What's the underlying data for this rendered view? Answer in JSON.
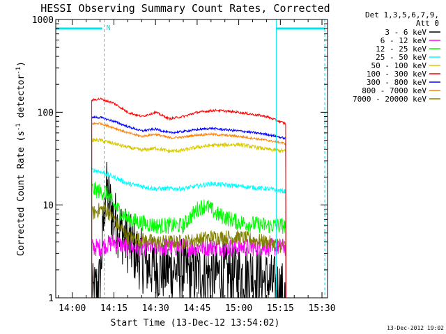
{
  "chart_data": {
    "type": "line",
    "title": "HESSI Observing Summary Count Rates, Corrected",
    "xlabel": "Start Time (13-Dec-12 13:54:02)",
    "ylabel": "Corrected Count Rate (s⁻¹ detector⁻¹)",
    "ylabel_parts": {
      "a": "Corrected Count Rate (s",
      "b": "-1",
      "c": " detector",
      "d": "-1",
      "e": ")"
    },
    "yscale": "log",
    "ylim": [
      1,
      1000
    ],
    "xlim": [
      "13:54:02",
      "15:32"
    ],
    "x_ticks": [
      "14:00",
      "14:15",
      "14:30",
      "14:45",
      "15:00",
      "15:15",
      "15:30"
    ],
    "y_ticks": [
      "1",
      "10",
      "100",
      "1000"
    ],
    "legend_header": [
      "Det 1,3,5,6,7,9,",
      "Att 0"
    ],
    "legend_position": "right",
    "timestamp": "13-Dec-2012 19:02",
    "annotations": [
      {
        "label": "N",
        "time": "14:12:00"
      }
    ],
    "night_markers": [
      "14:11:30",
      "15:31:00"
    ],
    "day_markers": [
      "15:13:30"
    ],
    "observing_interval": [
      "14:07:00",
      "15:17:00"
    ],
    "series": [
      {
        "name": "3 - 6 keV",
        "color": "#000000",
        "x": [
          "14:07",
          "14:10",
          "14:12",
          "14:15",
          "14:20",
          "14:25",
          "14:30",
          "14:35",
          "14:40",
          "14:45",
          "14:50",
          "14:55",
          "15:00",
          "15:05",
          "15:10",
          "15:15",
          "15:17"
        ],
        "values": [
          1,
          1.5,
          15,
          7,
          4,
          2.5,
          2,
          2,
          2,
          1.8,
          1.8,
          1.8,
          1.8,
          1.8,
          1.5,
          1.2,
          1
        ]
      },
      {
        "name": "6 - 12 keV",
        "color": "#ff00ff",
        "x": [
          "14:07",
          "14:10",
          "14:15",
          "14:20",
          "14:30",
          "14:40",
          "14:50",
          "15:00",
          "15:10",
          "15:17"
        ],
        "values": [
          3.5,
          3.5,
          4,
          3.5,
          3.5,
          3.5,
          3.5,
          3.5,
          3.5,
          3.5
        ]
      },
      {
        "name": "12 - 25 keV",
        "color": "#00ff00",
        "x": [
          "14:07",
          "14:10",
          "14:12",
          "14:15",
          "14:20",
          "14:30",
          "14:40",
          "14:45",
          "14:48",
          "14:52",
          "15:00",
          "15:10",
          "15:17"
        ],
        "values": [
          15,
          14,
          14,
          10,
          7,
          6,
          6,
          9,
          10,
          8,
          6.5,
          6,
          6
        ]
      },
      {
        "name": "25 - 50 keV",
        "color": "#00ffff",
        "x": [
          "14:07",
          "14:10",
          "14:15",
          "14:20",
          "14:30",
          "14:40",
          "14:45",
          "14:50",
          "15:00",
          "15:10",
          "15:17"
        ],
        "values": [
          24,
          23,
          20,
          17,
          15,
          15,
          16,
          17,
          16,
          15,
          14
        ]
      },
      {
        "name": "50 - 100 keV",
        "color": "#d8c800",
        "x": [
          "14:07",
          "14:10",
          "14:15",
          "14:20",
          "14:25",
          "14:30",
          "14:35",
          "14:40",
          "14:45",
          "14:50",
          "15:00",
          "15:10",
          "15:17"
        ],
        "values": [
          50,
          50,
          46,
          42,
          39,
          41,
          38,
          39,
          42,
          44,
          45,
          40,
          38
        ]
      },
      {
        "name": "100 - 300 keV",
        "color": "#ff0000",
        "x": [
          "14:07",
          "14:10",
          "14:15",
          "14:20",
          "14:25",
          "14:30",
          "14:35",
          "14:40",
          "14:45",
          "14:52",
          "15:00",
          "15:10",
          "15:17"
        ],
        "values": [
          135,
          140,
          125,
          100,
          90,
          100,
          85,
          90,
          100,
          105,
          100,
          90,
          75
        ]
      },
      {
        "name": "300 - 800 keV",
        "color": "#0000ff",
        "x": [
          "14:07",
          "14:10",
          "14:15",
          "14:20",
          "14:25",
          "14:30",
          "14:35",
          "14:40",
          "14:45",
          "14:50",
          "15:00",
          "15:10",
          "15:17"
        ],
        "values": [
          88,
          88,
          80,
          70,
          63,
          66,
          60,
          62,
          65,
          67,
          63,
          58,
          52
        ]
      },
      {
        "name": "800 - 7000 keV",
        "color": "#ff8000",
        "x": [
          "14:07",
          "14:10",
          "14:15",
          "14:20",
          "14:25",
          "14:30",
          "14:35",
          "14:40",
          "14:45",
          "14:50",
          "15:00",
          "15:10",
          "15:17"
        ],
        "values": [
          75,
          76,
          68,
          60,
          55,
          58,
          53,
          54,
          57,
          58,
          55,
          50,
          46
        ]
      },
      {
        "name": "7000 - 20000 keV",
        "color": "#808000",
        "x": [
          "14:07",
          "14:10",
          "14:12",
          "14:15",
          "14:20",
          "14:30",
          "14:40",
          "14:50",
          "15:00",
          "15:10",
          "15:17"
        ],
        "values": [
          8,
          9,
          9,
          7,
          4.5,
          4,
          4,
          4.5,
          4.5,
          4,
          3.5
        ]
      }
    ]
  }
}
